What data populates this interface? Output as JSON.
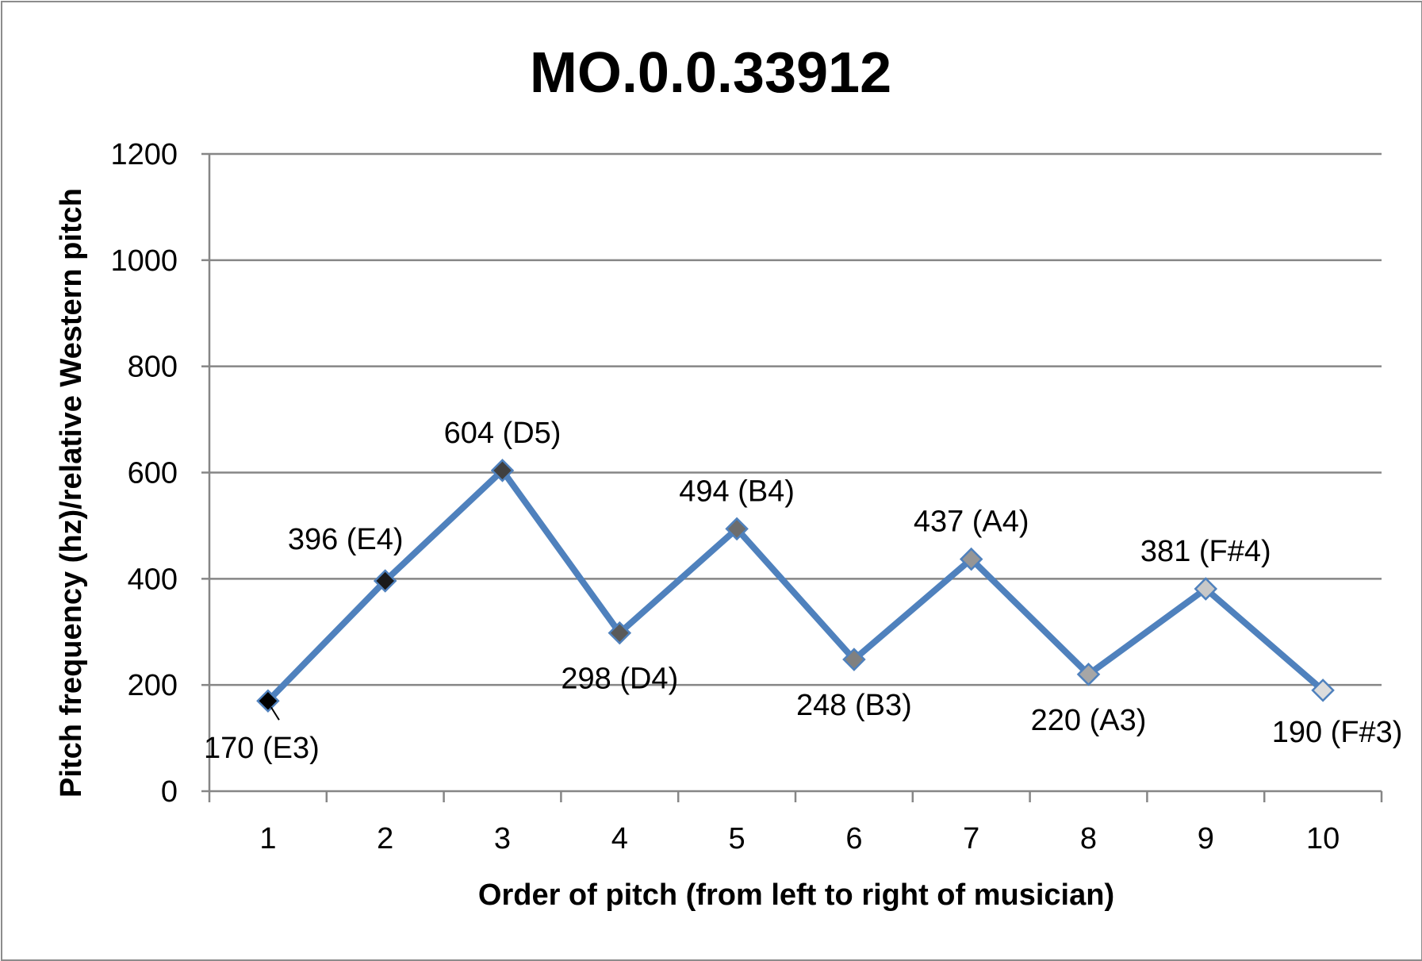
{
  "chart_data": {
    "type": "line",
    "title": "MO.0.0.33912",
    "xlabel": "Order of pitch (from left to right of musician)",
    "ylabel": "Pitch frequency (hz)/relative Western pitch",
    "ylim": [
      0,
      1200
    ],
    "yticks": [
      "0",
      "200",
      "400",
      "600",
      "800",
      "1000",
      "1200"
    ],
    "categories": [
      "1",
      "2",
      "3",
      "4",
      "5",
      "6",
      "7",
      "8",
      "9",
      "10"
    ],
    "values": [
      170,
      396,
      604,
      298,
      494,
      248,
      437,
      220,
      381,
      190
    ],
    "data_labels": [
      "170 (E3)",
      "396 (E4)",
      "604 (D5)",
      "298 (D4)",
      "494 (B4)",
      "248 (B3)",
      "437 (A4)",
      "220 (A3)",
      "381 (F#4)",
      "190 (F#3)"
    ],
    "grid": true,
    "legend": "none",
    "line_color": "#4f81bd",
    "marker_colors": [
      "#000000",
      "#1a1a1a",
      "#404040",
      "#595959",
      "#6d6d6d",
      "#808080",
      "#969696",
      "#a6a6a6",
      "#c8c8c8",
      "#dcdcdc"
    ],
    "marker_stroke": "#4f81bd",
    "gridline_color": "#868686"
  }
}
